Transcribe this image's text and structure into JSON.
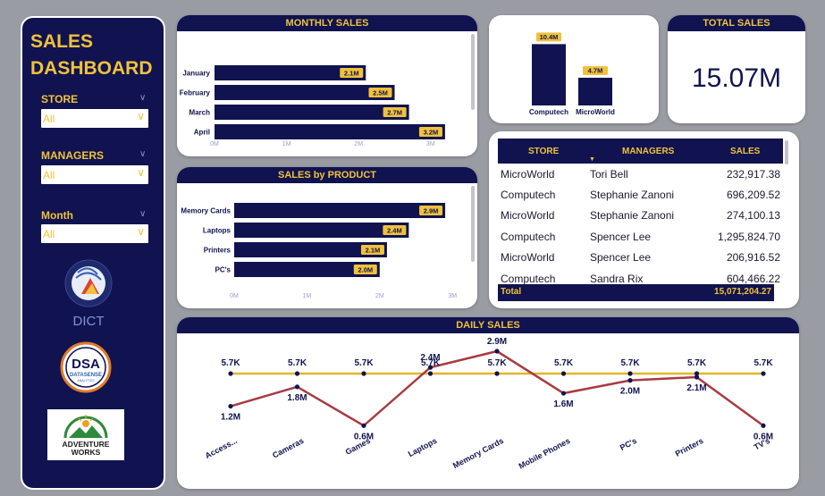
{
  "dashboard": {
    "title_line1": "SALES",
    "title_line2": "DASHBOARD"
  },
  "slicers": [
    {
      "label": "STORE",
      "value": "All"
    },
    {
      "label": "MANAGERS",
      "value": "All"
    },
    {
      "label": "Month",
      "value": "All"
    }
  ],
  "logos": {
    "dict": "DICT",
    "dsa": "DSA",
    "dsa_sub": "DATASENSE",
    "dsa_sub2": "ANALYTICS",
    "adventure_line1": "ADVENTURE",
    "adventure_line2": "WORKS"
  },
  "monthly_sales": {
    "title": "MONTHLY SALES",
    "rows": [
      {
        "label": "January",
        "value": 2.1,
        "tag": "2.1M"
      },
      {
        "label": "February",
        "value": 2.5,
        "tag": "2.5M"
      },
      {
        "label": "March",
        "value": 2.7,
        "tag": "2.7M"
      },
      {
        "label": "April",
        "value": 3.2,
        "tag": "3.2M"
      }
    ],
    "axis": [
      "0M",
      "1M",
      "2M",
      "3M"
    ]
  },
  "sales_by_product": {
    "title": "SALES by PRODUCT",
    "rows": [
      {
        "label": "Memory Cards",
        "value": 2.9,
        "tag": "2.9M"
      },
      {
        "label": "Laptops",
        "value": 2.4,
        "tag": "2.4M"
      },
      {
        "label": "Printers",
        "value": 2.1,
        "tag": "2.1M"
      },
      {
        "label": "PC's",
        "value": 2.0,
        "tag": "2.0M"
      }
    ],
    "axis": [
      "0M",
      "1M",
      "2M",
      "3M"
    ]
  },
  "store_chart": {
    "bars": [
      {
        "label": "Computech",
        "value": 10.4,
        "tag": "10.4M"
      },
      {
        "label": "MicroWorld",
        "value": 4.7,
        "tag": "4.7M"
      }
    ]
  },
  "total_sales": {
    "title": "TOTAL SALES",
    "value": "15.07M"
  },
  "table": {
    "headers": {
      "store": "STORE",
      "managers": "MANAGERS",
      "sales": "SALES"
    },
    "rows": [
      {
        "store": "MicroWorld",
        "manager": "Tori Bell",
        "sales": "232,917.38"
      },
      {
        "store": "Computech",
        "manager": "Stephanie Zanoni",
        "sales": "696,209.52"
      },
      {
        "store": "MicroWorld",
        "manager": "Stephanie Zanoni",
        "sales": "274,100.13"
      },
      {
        "store": "Computech",
        "manager": "Spencer Lee",
        "sales": "1,295,824.70"
      },
      {
        "store": "MicroWorld",
        "manager": "Spencer Lee",
        "sales": "206,916.52"
      },
      {
        "store": "Computech",
        "manager": "Sandra Rix",
        "sales": "604,466.22"
      }
    ],
    "total_label": "Total",
    "total_value": "15,071,204.27"
  },
  "chart_data": {
    "type": "line",
    "title": "DAILY SALES",
    "categories": [
      "Access...",
      "Cameras",
      "Games",
      "Laptops",
      "Memory Cards",
      "Mobile Phones",
      "PC's",
      "Printers",
      "TV's"
    ],
    "series": [
      {
        "values": [
          1.2,
          1.8,
          0.6,
          2.4,
          2.9,
          1.6,
          2.0,
          2.1,
          0.6
        ],
        "labels": [
          "1.2M",
          "1.8M",
          "0.6M",
          "2.4M",
          "2.9M",
          "1.6M",
          "2.0M",
          "2.1M",
          "0.6M"
        ],
        "color": "#a83a42"
      },
      {
        "values": [
          5.7,
          5.7,
          5.7,
          5.7,
          5.7,
          5.7,
          5.7,
          5.7,
          5.7
        ],
        "labels": [
          "5.7K",
          "5.7K",
          "5.7K",
          "5.7K",
          "5.7K",
          "5.7K",
          "5.7K",
          "5.7K",
          "5.7K"
        ],
        "color": "#e0b62c"
      }
    ]
  },
  "colors": {
    "navy": "#10134f",
    "gold": "#f0c23c",
    "maroon": "#a83a42",
    "line_gold": "#e0b62c"
  }
}
